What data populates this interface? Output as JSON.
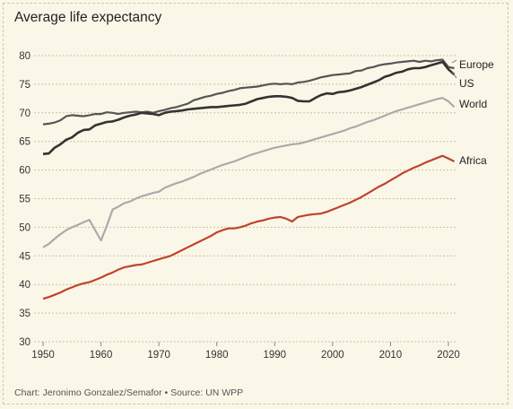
{
  "title": "Average life expectancy",
  "source": "Chart: Jeronimo Gonzalez/Semafor • Source: UN WPP",
  "chart_data": {
    "type": "line",
    "title": "Average life expectancy",
    "xlim": [
      1950,
      2021
    ],
    "ylim": [
      30,
      80
    ],
    "xticks": [
      1950,
      1960,
      1970,
      1980,
      1990,
      2000,
      2010,
      2020
    ],
    "yticks": [
      30,
      35,
      40,
      45,
      50,
      55,
      60,
      65,
      70,
      75,
      80
    ],
    "grid": "horizontal dashed",
    "legend": "direct labels at right",
    "x": [
      1950,
      1951,
      1952,
      1953,
      1954,
      1955,
      1956,
      1957,
      1958,
      1959,
      1960,
      1961,
      1962,
      1963,
      1964,
      1965,
      1966,
      1967,
      1968,
      1969,
      1970,
      1971,
      1972,
      1973,
      1974,
      1975,
      1976,
      1977,
      1978,
      1979,
      1980,
      1981,
      1982,
      1983,
      1984,
      1985,
      1986,
      1987,
      1988,
      1989,
      1990,
      1991,
      1992,
      1993,
      1994,
      1995,
      1996,
      1997,
      1998,
      1999,
      2000,
      2001,
      2002,
      2003,
      2004,
      2005,
      2006,
      2007,
      2008,
      2009,
      2010,
      2011,
      2012,
      2013,
      2014,
      2015,
      2016,
      2017,
      2018,
      2019,
      2020,
      2021
    ],
    "series": [
      {
        "name": "Europe",
        "color": "#555555",
        "values": [
          68.0,
          68.1,
          68.3,
          68.7,
          69.4,
          69.6,
          69.5,
          69.4,
          69.6,
          69.8,
          69.8,
          70.1,
          70.0,
          69.8,
          70.0,
          70.1,
          70.2,
          70.1,
          70.2,
          70.0,
          70.3,
          70.5,
          70.8,
          71.0,
          71.3,
          71.6,
          72.2,
          72.5,
          72.8,
          73.0,
          73.3,
          73.5,
          73.8,
          74.0,
          74.3,
          74.4,
          74.5,
          74.6,
          74.8,
          75.0,
          75.1,
          75.0,
          75.1,
          75.0,
          75.3,
          75.4,
          75.6,
          75.9,
          76.2,
          76.4,
          76.6,
          76.7,
          76.8,
          76.9,
          77.3,
          77.4,
          77.8,
          78.0,
          78.3,
          78.5,
          78.6,
          78.8,
          78.9,
          79.0,
          79.1,
          78.9,
          79.1,
          79.0,
          79.2,
          79.3,
          78.0,
          77.8
        ]
      },
      {
        "name": "US",
        "color": "#333333",
        "values": [
          62.8,
          62.9,
          63.9,
          64.5,
          65.3,
          65.7,
          66.5,
          67.0,
          67.1,
          67.8,
          68.1,
          68.4,
          68.5,
          68.8,
          69.2,
          69.5,
          69.7,
          70.0,
          69.9,
          69.8,
          69.6,
          70.0,
          70.2,
          70.3,
          70.4,
          70.6,
          70.7,
          70.8,
          70.9,
          71.0,
          71.0,
          71.1,
          71.2,
          71.3,
          71.4,
          71.6,
          72.0,
          72.4,
          72.6,
          72.8,
          72.9,
          72.9,
          72.8,
          72.6,
          72.1,
          72.0,
          72.0,
          72.6,
          73.1,
          73.4,
          73.3,
          73.6,
          73.7,
          73.9,
          74.2,
          74.5,
          74.9,
          75.3,
          75.7,
          76.3,
          76.6,
          77.0,
          77.2,
          77.6,
          77.8,
          77.8,
          78.0,
          78.3,
          78.6,
          78.9,
          77.6,
          76.7
        ]
      },
      {
        "name": "World",
        "color": "#aaaaaa",
        "values": [
          46.5,
          47.1,
          48.0,
          48.8,
          49.5,
          50.0,
          50.4,
          50.9,
          51.3,
          49.5,
          47.7,
          50.2,
          53.1,
          53.6,
          54.2,
          54.5,
          55.0,
          55.4,
          55.7,
          56.0,
          56.2,
          56.9,
          57.3,
          57.7,
          58.0,
          58.4,
          58.8,
          59.3,
          59.7,
          60.1,
          60.5,
          60.9,
          61.2,
          61.5,
          61.9,
          62.3,
          62.7,
          63.0,
          63.3,
          63.6,
          63.9,
          64.1,
          64.3,
          64.5,
          64.6,
          64.8,
          65.1,
          65.4,
          65.7,
          66.0,
          66.3,
          66.6,
          66.9,
          67.3,
          67.6,
          68.0,
          68.4,
          68.7,
          69.1,
          69.5,
          69.9,
          70.3,
          70.6,
          70.9,
          71.2,
          71.5,
          71.8,
          72.1,
          72.4,
          72.6,
          72.0,
          71.0
        ]
      },
      {
        "name": "Africa",
        "color": "#c0422d",
        "values": [
          37.5,
          37.8,
          38.2,
          38.6,
          39.1,
          39.5,
          39.9,
          40.2,
          40.4,
          40.8,
          41.2,
          41.7,
          42.1,
          42.6,
          43.0,
          43.2,
          43.4,
          43.5,
          43.8,
          44.1,
          44.4,
          44.7,
          45.0,
          45.5,
          46.0,
          46.5,
          47.0,
          47.5,
          48.0,
          48.5,
          49.1,
          49.5,
          49.8,
          49.8,
          50.0,
          50.3,
          50.7,
          51.0,
          51.2,
          51.5,
          51.7,
          51.8,
          51.5,
          51.0,
          51.8,
          52.0,
          52.2,
          52.3,
          52.4,
          52.7,
          53.1,
          53.5,
          53.9,
          54.3,
          54.8,
          55.3,
          55.9,
          56.5,
          57.1,
          57.6,
          58.2,
          58.8,
          59.4,
          59.9,
          60.4,
          60.8,
          61.3,
          61.7,
          62.1,
          62.5,
          62.0,
          61.5
        ]
      }
    ]
  }
}
